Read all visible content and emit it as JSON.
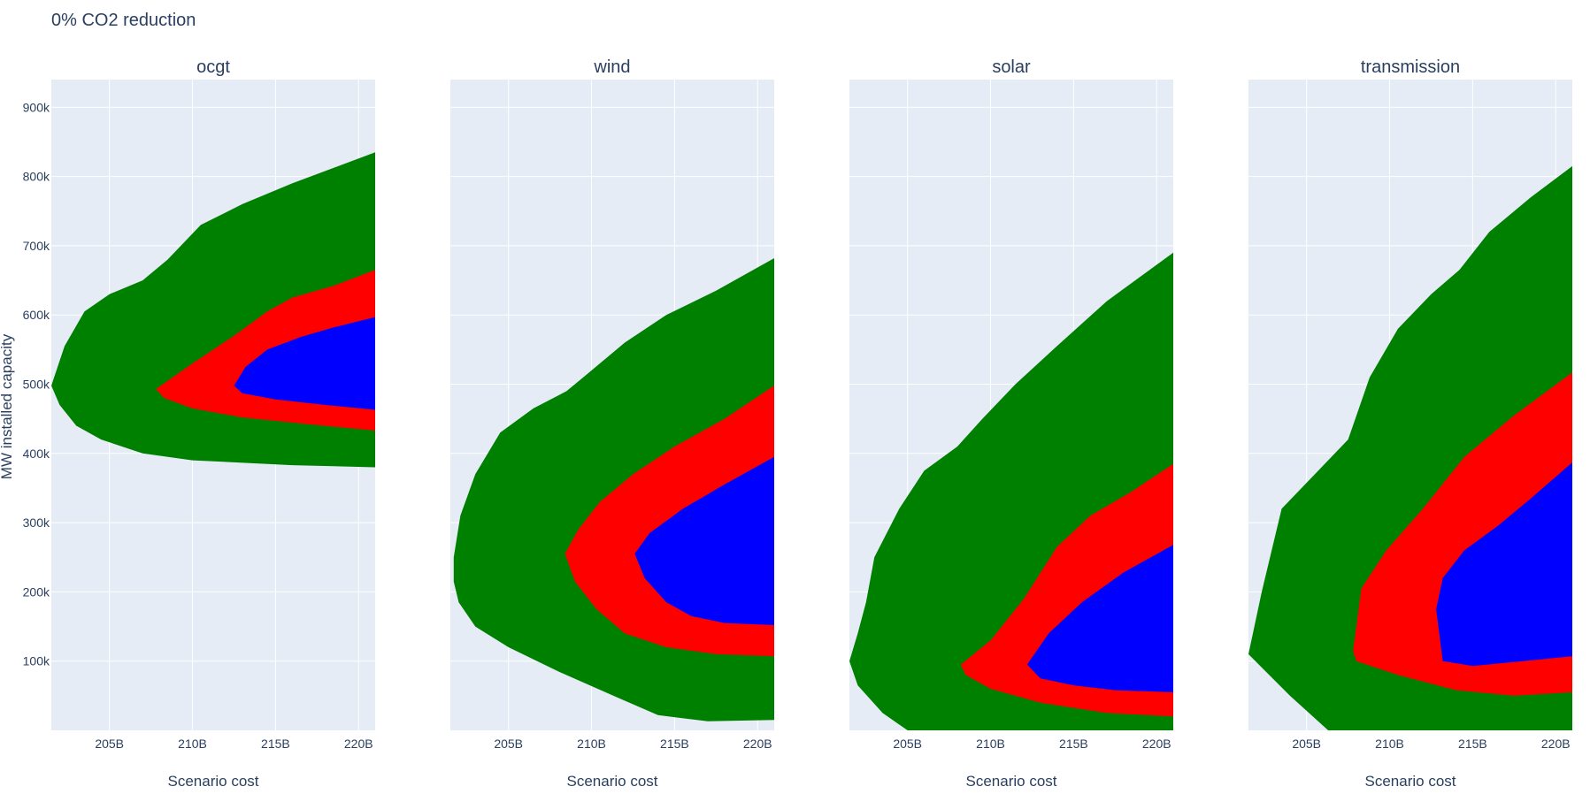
{
  "title": "0% CO2 reduction",
  "y_axis_label": "MW installed capacity",
  "x_axis_label": "Scenario cost",
  "colors": {
    "plot_background": "#e5ecf6",
    "grid": "#ffffff",
    "outer_band": "#008000",
    "middle_band": "#ff0000",
    "inner_band": "#0000ff",
    "text": "#2a3f5f"
  },
  "chart_data": [
    {
      "type": "area",
      "title": "ocgt",
      "xlabel": "Scenario cost",
      "ylabel": "MW installed capacity",
      "xlim": [
        201.5,
        221
      ],
      "ylim": [
        0,
        940000
      ],
      "xticks": [
        {
          "v": 205,
          "label": "205B"
        },
        {
          "v": 210,
          "label": "210B"
        },
        {
          "v": 215,
          "label": "215B"
        },
        {
          "v": 220,
          "label": "220B"
        }
      ],
      "yticks": [
        {
          "v": 100000,
          "label": "100k"
        },
        {
          "v": 200000,
          "label": "200k"
        },
        {
          "v": 300000,
          "label": "300k"
        },
        {
          "v": 400000,
          "label": "400k"
        },
        {
          "v": 500000,
          "label": "500k"
        },
        {
          "v": 600000,
          "label": "600k"
        },
        {
          "v": 700000,
          "label": "700k"
        },
        {
          "v": 800000,
          "label": "800k"
        },
        {
          "v": 900000,
          "label": "900k"
        }
      ],
      "grid": true,
      "regions": [
        {
          "band": "outer",
          "points": [
            [
              201.5,
              498000
            ],
            [
              202.3,
              555000
            ],
            [
              203.5,
              605000
            ],
            [
              205,
              630000
            ],
            [
              207,
              650000
            ],
            [
              208.5,
              680000
            ],
            [
              210.5,
              730000
            ],
            [
              213,
              760000
            ],
            [
              216,
              790000
            ],
            [
              221,
              835000
            ],
            [
              221,
              380000
            ],
            [
              216,
              383000
            ],
            [
              210,
              390000
            ],
            [
              207,
              400000
            ],
            [
              204.5,
              420000
            ],
            [
              203,
              440000
            ],
            [
              202,
              470000
            ]
          ]
        },
        {
          "band": "middle",
          "points": [
            [
              207.8,
              493000
            ],
            [
              210,
              530000
            ],
            [
              212.5,
              570000
            ],
            [
              214.5,
              605000
            ],
            [
              216,
              625000
            ],
            [
              218.5,
              642000
            ],
            [
              221,
              665000
            ],
            [
              221,
              433000
            ],
            [
              217,
              442000
            ],
            [
              213,
              452000
            ],
            [
              210,
              465000
            ],
            [
              208.3,
              480000
            ]
          ]
        },
        {
          "band": "inner",
          "points": [
            [
              212.5,
              498000
            ],
            [
              213.2,
              525000
            ],
            [
              214.5,
              550000
            ],
            [
              216.5,
              568000
            ],
            [
              218.5,
              582000
            ],
            [
              221,
              597000
            ],
            [
              221,
              463000
            ],
            [
              218,
              470000
            ],
            [
              215,
              478000
            ],
            [
              213,
              487000
            ]
          ]
        }
      ]
    },
    {
      "type": "area",
      "title": "wind",
      "xlabel": "Scenario cost",
      "ylabel": "",
      "xlim": [
        201.5,
        221
      ],
      "ylim": [
        0,
        940000
      ],
      "xticks": [
        {
          "v": 205,
          "label": "205B"
        },
        {
          "v": 210,
          "label": "210B"
        },
        {
          "v": 215,
          "label": "215B"
        },
        {
          "v": 220,
          "label": "220B"
        }
      ],
      "yticks": [],
      "grid": true,
      "regions": [
        {
          "band": "outer",
          "points": [
            [
              201.7,
              250000
            ],
            [
              202.1,
              310000
            ],
            [
              203,
              370000
            ],
            [
              204.5,
              430000
            ],
            [
              206.5,
              465000
            ],
            [
              208.5,
              490000
            ],
            [
              209.5,
              510000
            ],
            [
              212,
              560000
            ],
            [
              214.5,
              600000
            ],
            [
              217.5,
              635000
            ],
            [
              221,
              682000
            ],
            [
              221,
              15000
            ],
            [
              217,
              13000
            ],
            [
              214,
              22000
            ],
            [
              211.5,
              48000
            ],
            [
              208,
              85000
            ],
            [
              205,
              120000
            ],
            [
              203,
              150000
            ],
            [
              202,
              185000
            ],
            [
              201.7,
              215000
            ]
          ]
        },
        {
          "band": "middle",
          "points": [
            [
              208.4,
              255000
            ],
            [
              209.2,
              290000
            ],
            [
              210.5,
              330000
            ],
            [
              212.5,
              370000
            ],
            [
              215,
              410000
            ],
            [
              218,
              450000
            ],
            [
              221,
              498000
            ],
            [
              221,
              107000
            ],
            [
              217.5,
              110000
            ],
            [
              214.5,
              120000
            ],
            [
              212,
              140000
            ],
            [
              210.3,
              175000
            ],
            [
              209,
              215000
            ]
          ]
        },
        {
          "band": "inner",
          "points": [
            [
              212.6,
              255000
            ],
            [
              213.5,
              285000
            ],
            [
              215.5,
              320000
            ],
            [
              218,
              355000
            ],
            [
              221,
              395000
            ],
            [
              221,
              152000
            ],
            [
              218,
              155000
            ],
            [
              216,
              165000
            ],
            [
              214.5,
              185000
            ],
            [
              213.2,
              220000
            ]
          ]
        }
      ]
    },
    {
      "type": "area",
      "title": "solar",
      "xlabel": "Scenario cost",
      "ylabel": "",
      "xlim": [
        201.5,
        221
      ],
      "ylim": [
        0,
        940000
      ],
      "xticks": [
        {
          "v": 205,
          "label": "205B"
        },
        {
          "v": 210,
          "label": "210B"
        },
        {
          "v": 215,
          "label": "215B"
        },
        {
          "v": 220,
          "label": "220B"
        }
      ],
      "yticks": [],
      "grid": true,
      "regions": [
        {
          "band": "outer",
          "points": [
            [
              201.5,
              100000
            ],
            [
              202,
              140000
            ],
            [
              202.5,
              185000
            ],
            [
              203,
              250000
            ],
            [
              204.5,
              320000
            ],
            [
              206,
              375000
            ],
            [
              208,
              410000
            ],
            [
              209.5,
              450000
            ],
            [
              211.5,
              500000
            ],
            [
              214,
              555000
            ],
            [
              217,
              620000
            ],
            [
              221,
              690000
            ],
            [
              221,
              0
            ],
            [
              205,
              0
            ],
            [
              203.5,
              25000
            ],
            [
              202,
              65000
            ]
          ]
        },
        {
          "band": "middle",
          "points": [
            [
              208.2,
              95000
            ],
            [
              210,
              130000
            ],
            [
              212,
              190000
            ],
            [
              214,
              265000
            ],
            [
              216,
              310000
            ],
            [
              218.5,
              345000
            ],
            [
              221,
              385000
            ],
            [
              221,
              20000
            ],
            [
              217,
              25000
            ],
            [
              213,
              40000
            ],
            [
              210,
              60000
            ],
            [
              208.5,
              80000
            ]
          ]
        },
        {
          "band": "inner",
          "points": [
            [
              212.2,
              95000
            ],
            [
              213.5,
              140000
            ],
            [
              215.5,
              185000
            ],
            [
              218,
              228000
            ],
            [
              221,
              268000
            ],
            [
              221,
              55000
            ],
            [
              217.5,
              58000
            ],
            [
              215,
              65000
            ],
            [
              213,
              75000
            ]
          ]
        }
      ]
    },
    {
      "type": "area",
      "title": "transmission",
      "xlabel": "Scenario cost",
      "ylabel": "",
      "xlim": [
        201.5,
        221
      ],
      "ylim": [
        0,
        940000
      ],
      "xticks": [
        {
          "v": 205,
          "label": "205B"
        },
        {
          "v": 210,
          "label": "210B"
        },
        {
          "v": 215,
          "label": "215B"
        },
        {
          "v": 220,
          "label": "220B"
        }
      ],
      "yticks": [],
      "grid": true,
      "regions": [
        {
          "band": "outer",
          "points": [
            [
              201.5,
              110000
            ],
            [
              202.3,
              200000
            ],
            [
              203.5,
              320000
            ],
            [
              205.5,
              370000
            ],
            [
              207.5,
              420000
            ],
            [
              208.8,
              510000
            ],
            [
              210.5,
              580000
            ],
            [
              212.5,
              630000
            ],
            [
              214.2,
              665000
            ],
            [
              216,
              720000
            ],
            [
              218.5,
              770000
            ],
            [
              221,
              815000
            ],
            [
              221,
              0
            ],
            [
              206.3,
              0
            ],
            [
              204,
              50000
            ]
          ]
        },
        {
          "band": "middle",
          "points": [
            [
              207.8,
              115000
            ],
            [
              208.3,
              205000
            ],
            [
              209.8,
              260000
            ],
            [
              212,
              320000
            ],
            [
              214.5,
              395000
            ],
            [
              217.5,
              455000
            ],
            [
              221,
              517000
            ],
            [
              221,
              55000
            ],
            [
              217.5,
              50000
            ],
            [
              214,
              58000
            ],
            [
              210.5,
              80000
            ],
            [
              208,
              100000
            ]
          ]
        },
        {
          "band": "inner",
          "points": [
            [
              212.8,
              175000
            ],
            [
              213.2,
              220000
            ],
            [
              214.5,
              260000
            ],
            [
              216.5,
              295000
            ],
            [
              218.5,
              335000
            ],
            [
              221,
              387000
            ],
            [
              221,
              107000
            ],
            [
              218,
              100000
            ],
            [
              215,
              93000
            ],
            [
              213.2,
              100000
            ]
          ]
        }
      ]
    }
  ]
}
